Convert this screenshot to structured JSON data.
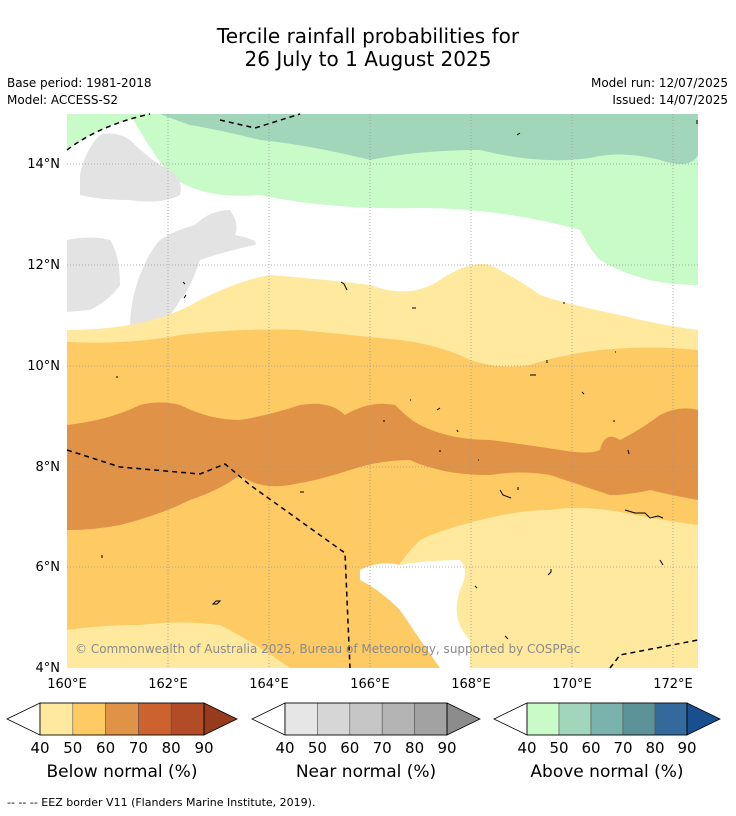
{
  "header": {
    "title_line1": "Tercile rainfall probabilities for",
    "title_line2": "26 July to 1 August 2025",
    "base_period": "Base period: 1981-2018",
    "model": "Model: ACCESS-S2",
    "model_run": "Model run: 12/07/2025",
    "issued": "Issued: 14/07/2025"
  },
  "map": {
    "lat_labels": [
      "14°N",
      "12°N",
      "10°N",
      "8°N",
      "6°N",
      "4°N"
    ],
    "lon_labels": [
      "160°E",
      "162°E",
      "164°E",
      "166°E",
      "168°E",
      "170°E",
      "172°E"
    ],
    "copyright": "© Commonwealth of Australia 2025, Bureau of Meteorology, supported by COSPPac",
    "extent": {
      "lon": [
        160,
        172.5
      ],
      "lat": [
        4,
        15
      ]
    }
  },
  "legend": {
    "below": {
      "label": "Below normal (%)",
      "ticks": [
        "40",
        "50",
        "60",
        "70",
        "80",
        "90"
      ],
      "colors": [
        "#fee99e",
        "#fdca64",
        "#e09347",
        "#cc6230",
        "#b14c26",
        "#963c1c"
      ]
    },
    "near": {
      "label": "Near normal (%)",
      "ticks": [
        "40",
        "50",
        "60",
        "70",
        "80",
        "90"
      ],
      "colors": [
        "#e6e6e6",
        "#d6d6d6",
        "#c6c6c6",
        "#b4b4b4",
        "#a2a2a2",
        "#8c8c8c"
      ]
    },
    "above": {
      "label": "Above normal (%)",
      "ticks": [
        "40",
        "50",
        "60",
        "70",
        "80",
        "90"
      ],
      "colors": [
        "#c9fbc9",
        "#a1d6bb",
        "#7ab3ae",
        "#5b9399",
        "#336a9c",
        "#1a4f8f"
      ]
    }
  },
  "footnote": "--  --  -- EEZ border V11 (Flanders Marine Institute, 2019).",
  "colors": {
    "below_40": "#fee99e",
    "below_50": "#fdca64",
    "below_60": "#e09347",
    "near_40": "#e6e6e6",
    "above_40": "#c9fbc9",
    "above_50": "#a1d6bb"
  }
}
